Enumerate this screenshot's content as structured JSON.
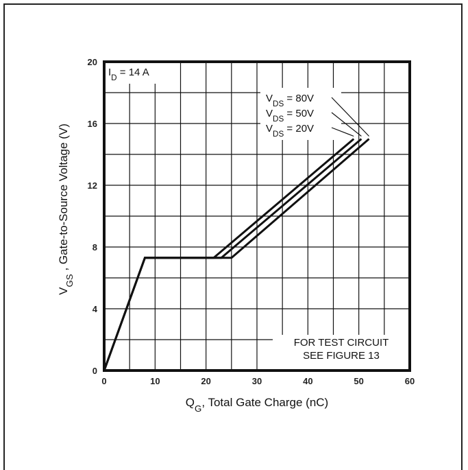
{
  "chart_data": {
    "type": "line",
    "xlabel": {
      "main": "Q",
      "sub": "G",
      "rest": ", Total Gate Charge (nC)"
    },
    "ylabel": {
      "main": "V",
      "sub": "GS",
      "rest": " , Gate-to-Source Voltage (V)"
    },
    "xlim": [
      0,
      60
    ],
    "ylim": [
      0,
      20
    ],
    "x_ticks": [
      0,
      10,
      20,
      30,
      40,
      50,
      60
    ],
    "y_ticks": [
      0,
      4,
      8,
      12,
      16,
      20
    ],
    "grid": true,
    "condition": {
      "main": "I",
      "sub": "D",
      "rest": " = 14 A"
    },
    "note_lines": [
      "FOR TEST CIRCUIT",
      "SEE FIGURE 13"
    ],
    "series": [
      {
        "label_main": "V",
        "label_sub": "DS",
        "label_rest": " = 80V",
        "points": [
          [
            0,
            0
          ],
          [
            8,
            7.3
          ],
          [
            25,
            7.3
          ],
          [
            52,
            15
          ]
        ]
      },
      {
        "label_main": "V",
        "label_sub": "DS",
        "label_rest": " = 50V",
        "points": [
          [
            0,
            0
          ],
          [
            8,
            7.3
          ],
          [
            23,
            7.3
          ],
          [
            50.5,
            15
          ]
        ]
      },
      {
        "label_main": "V",
        "label_sub": "DS",
        "label_rest": " = 20V",
        "points": [
          [
            0,
            0
          ],
          [
            8,
            7.3
          ],
          [
            21.5,
            7.3
          ],
          [
            49,
            15
          ]
        ]
      }
    ]
  }
}
